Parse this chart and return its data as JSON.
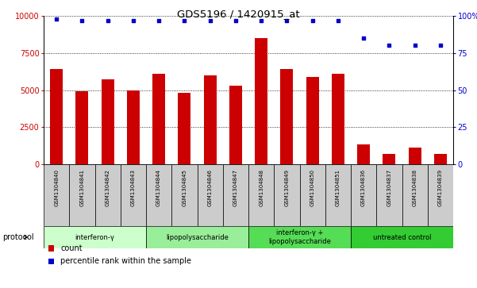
{
  "title": "GDS5196 / 1420915_at",
  "samples": [
    "GSM1304840",
    "GSM1304841",
    "GSM1304842",
    "GSM1304843",
    "GSM1304844",
    "GSM1304845",
    "GSM1304846",
    "GSM1304847",
    "GSM1304848",
    "GSM1304849",
    "GSM1304850",
    "GSM1304851",
    "GSM1304836",
    "GSM1304837",
    "GSM1304838",
    "GSM1304839"
  ],
  "counts": [
    6400,
    4900,
    5700,
    5000,
    6100,
    4800,
    6000,
    5300,
    8500,
    6400,
    5900,
    6100,
    1350,
    700,
    1100,
    700
  ],
  "percentile_ranks": [
    98,
    97,
    97,
    97,
    97,
    97,
    97,
    97,
    97,
    97,
    97,
    97,
    85,
    80,
    80,
    80
  ],
  "ylim_left": [
    0,
    10000
  ],
  "ylim_right": [
    0,
    100
  ],
  "yticks_left": [
    0,
    2500,
    5000,
    7500,
    10000
  ],
  "yticks_right": [
    0,
    25,
    50,
    75,
    100
  ],
  "bar_color": "#cc0000",
  "dot_color": "#0000cc",
  "groups": [
    {
      "label": "interferon-γ",
      "start": 0,
      "end": 4,
      "color": "#ccffcc"
    },
    {
      "label": "lipopolysaccharide",
      "start": 4,
      "end": 8,
      "color": "#99ee99"
    },
    {
      "label": "interferon-γ +\nlipopolysaccharide",
      "start": 8,
      "end": 12,
      "color": "#55dd55"
    },
    {
      "label": "untreated control",
      "start": 12,
      "end": 16,
      "color": "#33cc33"
    }
  ],
  "protocol_label": "protocol",
  "legend_count_label": "count",
  "legend_percentile_label": "percentile rank within the sample",
  "background_color": "#ffffff",
  "plot_bg_color": "#ffffff",
  "tick_bg_color": "#cccccc"
}
